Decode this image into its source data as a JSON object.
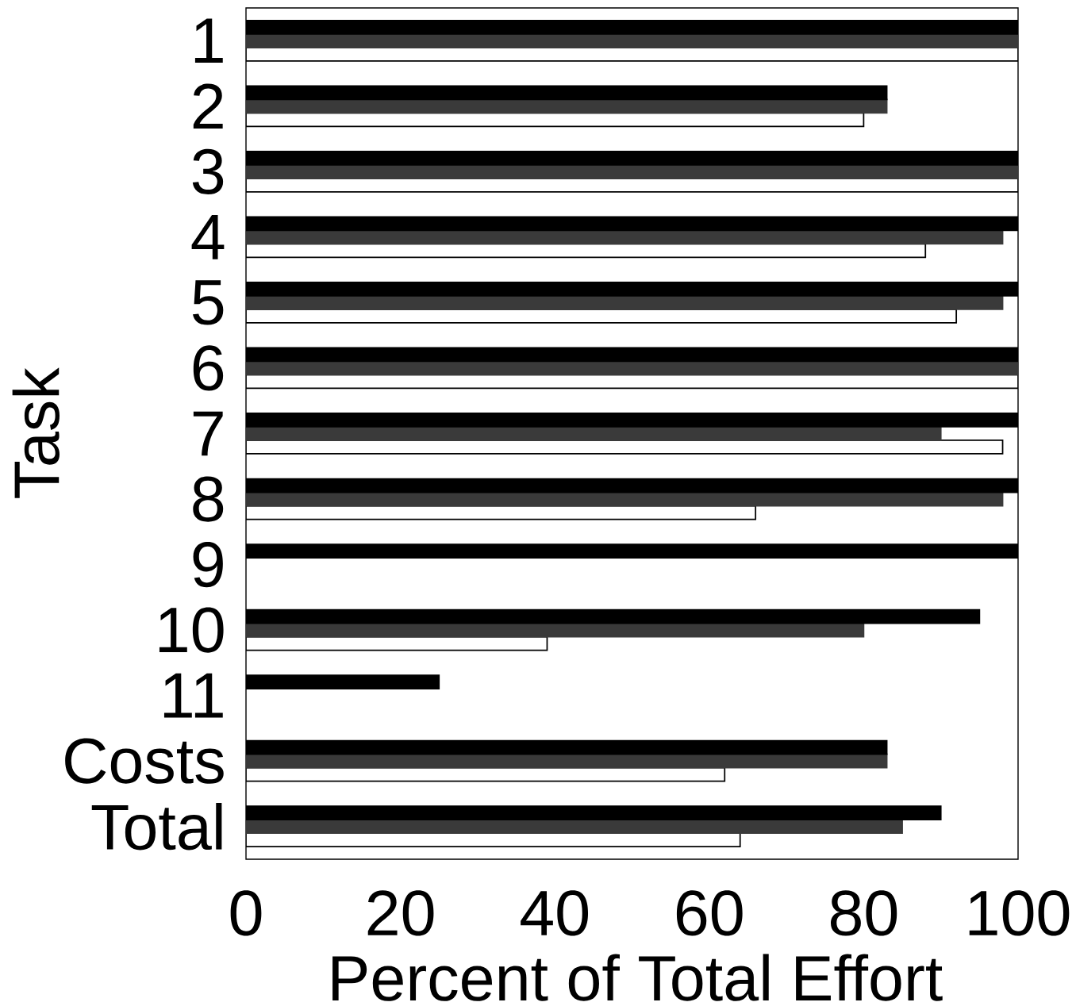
{
  "chart_data": {
    "type": "bar",
    "orientation": "horizontal",
    "xlabel": "Percent of Total Effort",
    "ylabel": "Task",
    "categories": [
      "1",
      "2",
      "3",
      "4",
      "5",
      "6",
      "7",
      "8",
      "9",
      "10",
      "11",
      "Costs",
      "Total"
    ],
    "series": [
      {
        "color": "#000000",
        "values": [
          100,
          83,
          100,
          100,
          100,
          100,
          100,
          100,
          100,
          95,
          25,
          83,
          90
        ]
      },
      {
        "color": "#3a3a3a",
        "values": [
          100,
          83,
          100,
          98,
          98,
          100,
          90,
          98,
          null,
          80,
          null,
          83,
          85
        ]
      },
      {
        "color": "#ffffff",
        "values": [
          100,
          80,
          100,
          88,
          92,
          100,
          98,
          66,
          null,
          39,
          null,
          62,
          64
        ]
      }
    ],
    "xlim": [
      0,
      100
    ],
    "xticks": [
      0,
      20,
      40,
      60,
      80,
      100
    ]
  }
}
